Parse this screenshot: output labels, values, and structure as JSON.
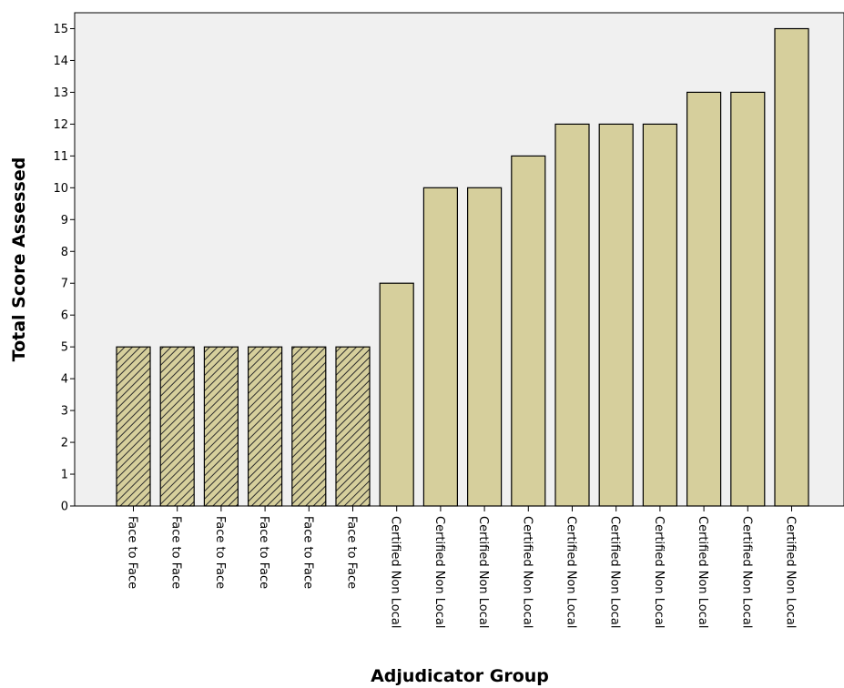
{
  "colors": {
    "plot_background": "#f0f0f0",
    "bar_fill": "#d6cf9c",
    "bar_stroke": "#000000",
    "hatch_line": "#2b2b2b"
  },
  "chart_data": {
    "type": "bar",
    "title": "",
    "xlabel": "Adjudicator Group",
    "ylabel": "Total Score Assessed",
    "ylim": [
      0,
      15.5
    ],
    "yticks": [
      0,
      1,
      2,
      3,
      4,
      5,
      6,
      7,
      8,
      9,
      10,
      11,
      12,
      13,
      14,
      15
    ],
    "grid": false,
    "legend": "none",
    "categories": [
      "Face to Face",
      "Face to Face",
      "Face to Face",
      "Face to Face",
      "Face to Face",
      "Face to Face",
      "Certified Non Local",
      "Certified Non Local",
      "Certified Non Local",
      "Certified Non Local",
      "Certified Non Local",
      "Certified Non Local",
      "Certified Non Local",
      "Certified Non Local",
      "Certified Non Local",
      "Certified Non Local"
    ],
    "values": [
      5,
      5,
      5,
      5,
      5,
      5,
      7,
      10,
      10,
      11,
      12,
      12,
      12,
      13,
      13,
      15
    ],
    "hatched": [
      true,
      true,
      true,
      true,
      true,
      true,
      false,
      false,
      false,
      false,
      false,
      false,
      false,
      false,
      false,
      false
    ]
  }
}
